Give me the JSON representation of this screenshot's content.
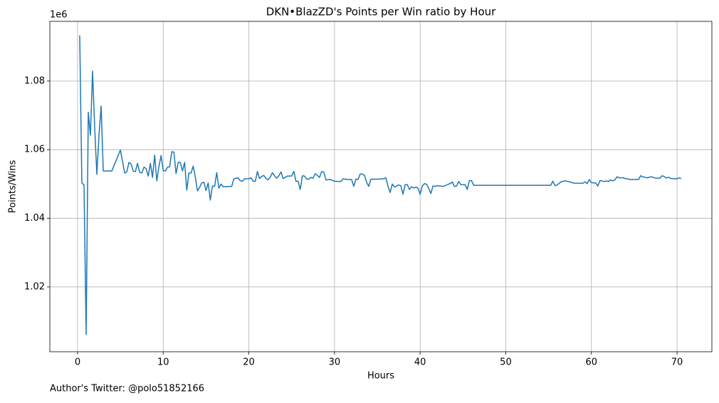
{
  "chart_data": {
    "type": "line",
    "title": "DKN•BlazZD's Points per Win ratio by Hour",
    "x_label": "Hours",
    "y_label": "Points/Wins",
    "y_offset_label": "1e6",
    "footnote": "Author's Twitter: @polo51852166",
    "grid": true,
    "xlim": [
      -3.24,
      74.07
    ],
    "ylim": [
      1001100,
      1097400
    ],
    "xticks": [
      0,
      10,
      20,
      30,
      40,
      50,
      60,
      70
    ],
    "yticks": [
      {
        "value": 1020000,
        "label": "1.02"
      },
      {
        "value": 1040000,
        "label": "1.04"
      },
      {
        "value": 1060000,
        "label": "1.06"
      },
      {
        "value": 1080000,
        "label": "1.08"
      }
    ],
    "x": [
      0.25,
      0.5,
      0.75,
      1.0,
      1.25,
      1.5,
      1.75,
      2.0,
      2.25,
      2.5,
      2.75,
      3.0,
      4.0,
      5.0,
      5.5,
      5.75,
      6.0,
      6.25,
      6.5,
      6.75,
      7.0,
      7.25,
      7.5,
      7.75,
      8.0,
      8.25,
      8.5,
      8.75,
      9.0,
      9.25,
      9.5,
      9.75,
      10.0,
      10.25,
      10.5,
      10.75,
      11.0,
      11.25,
      11.5,
      11.75,
      12.0,
      12.25,
      12.5,
      12.75,
      13.0,
      13.25,
      13.5,
      13.75,
      14.0,
      14.25,
      14.5,
      14.75,
      15.0,
      15.25,
      15.5,
      15.75,
      16.0,
      16.25,
      16.5,
      16.75,
      17.0,
      17.5,
      18.0,
      18.25,
      18.75,
      19.0,
      19.25,
      19.5,
      20.0,
      20.25,
      20.5,
      20.75,
      21.0,
      21.25,
      21.5,
      21.75,
      22.0,
      22.25,
      22.5,
      22.75,
      23.0,
      23.25,
      23.5,
      23.75,
      24.0,
      24.5,
      25.0,
      25.25,
      25.5,
      25.75,
      26.0,
      26.25,
      26.5,
      26.75,
      27.0,
      27.25,
      27.5,
      27.75,
      28.0,
      28.25,
      28.5,
      28.75,
      29.0,
      29.5,
      30.0,
      30.75,
      31.0,
      31.5,
      32.0,
      32.25,
      32.5,
      32.75,
      33.0,
      33.25,
      33.5,
      33.75,
      34.0,
      34.25,
      35.0,
      35.75,
      36.0,
      36.25,
      36.5,
      36.75,
      37.0,
      37.5,
      37.75,
      38.0,
      38.25,
      38.5,
      38.75,
      39.0,
      39.25,
      39.5,
      39.75,
      40.0,
      40.25,
      40.5,
      40.75,
      41.0,
      41.25,
      41.5,
      41.75,
      42.0,
      42.75,
      43.25,
      43.5,
      43.75,
      44.0,
      44.25,
      44.5,
      44.75,
      45.25,
      45.5,
      45.75,
      46.0,
      46.25,
      55.25,
      55.5,
      55.75,
      56.0,
      56.5,
      57.0,
      57.5,
      58.0,
      59.0,
      59.25,
      59.5,
      59.75,
      60.0,
      60.5,
      60.75,
      61.0,
      61.5,
      61.75,
      62.0,
      62.25,
      62.5,
      62.75,
      63.0,
      63.25,
      63.75,
      64.0,
      64.25,
      64.5,
      65.5,
      65.75,
      66.0,
      66.5,
      67.0,
      67.5,
      68.0,
      68.25,
      68.5,
      68.75,
      69.0,
      69.25,
      70.0,
      70.25,
      70.5
    ],
    "series": [
      {
        "color": "#1f77b4",
        "values": [
          1093300,
          1050300,
          1049700,
          1006100,
          1070900,
          1064200,
          1082900,
          1066300,
          1052800,
          1064200,
          1072700,
          1053800,
          1053800,
          1059900,
          1053200,
          1053500,
          1056300,
          1055800,
          1053700,
          1053600,
          1056000,
          1053400,
          1053200,
          1054900,
          1054500,
          1052300,
          1056000,
          1051900,
          1058400,
          1050900,
          1055100,
          1058300,
          1053900,
          1053800,
          1054900,
          1055000,
          1059400,
          1059300,
          1053000,
          1056300,
          1056300,
          1053800,
          1056300,
          1048200,
          1053200,
          1053200,
          1055200,
          1052000,
          1048000,
          1049000,
          1050300,
          1050500,
          1048100,
          1050300,
          1045300,
          1049400,
          1049300,
          1053300,
          1048800,
          1050000,
          1049200,
          1049200,
          1049300,
          1051500,
          1051800,
          1050900,
          1050800,
          1051500,
          1051500,
          1051800,
          1050800,
          1050800,
          1053600,
          1051600,
          1052200,
          1052500,
          1051600,
          1051200,
          1052000,
          1053300,
          1052400,
          1051700,
          1052400,
          1053500,
          1051600,
          1052300,
          1052300,
          1053700,
          1050800,
          1050800,
          1048400,
          1052400,
          1052300,
          1051400,
          1051400,
          1051900,
          1051700,
          1053000,
          1052500,
          1051900,
          1053600,
          1053500,
          1051200,
          1051300,
          1050800,
          1050700,
          1051500,
          1051300,
          1051300,
          1049300,
          1051400,
          1051300,
          1052900,
          1052900,
          1052500,
          1050500,
          1049300,
          1051400,
          1051400,
          1051500,
          1051800,
          1049300,
          1047500,
          1050000,
          1049100,
          1049700,
          1049500,
          1047000,
          1049800,
          1049800,
          1048400,
          1049200,
          1048800,
          1049100,
          1048800,
          1047000,
          1049400,
          1050100,
          1049900,
          1048800,
          1047200,
          1049400,
          1049300,
          1049500,
          1049300,
          1049900,
          1050100,
          1050600,
          1049300,
          1049400,
          1050700,
          1049800,
          1049800,
          1048400,
          1051000,
          1051000,
          1049600,
          1049600,
          1050800,
          1049500,
          1049700,
          1050700,
          1050900,
          1050600,
          1050200,
          1050200,
          1050600,
          1050100,
          1051300,
          1050400,
          1050300,
          1049400,
          1051000,
          1050700,
          1050900,
          1050700,
          1051200,
          1050900,
          1051200,
          1052100,
          1051800,
          1051800,
          1051500,
          1051500,
          1051300,
          1051300,
          1052400,
          1052100,
          1051800,
          1052100,
          1051700,
          1051700,
          1052400,
          1052200,
          1051700,
          1052000,
          1051600,
          1051500,
          1051800,
          1051600
        ]
      }
    ]
  }
}
